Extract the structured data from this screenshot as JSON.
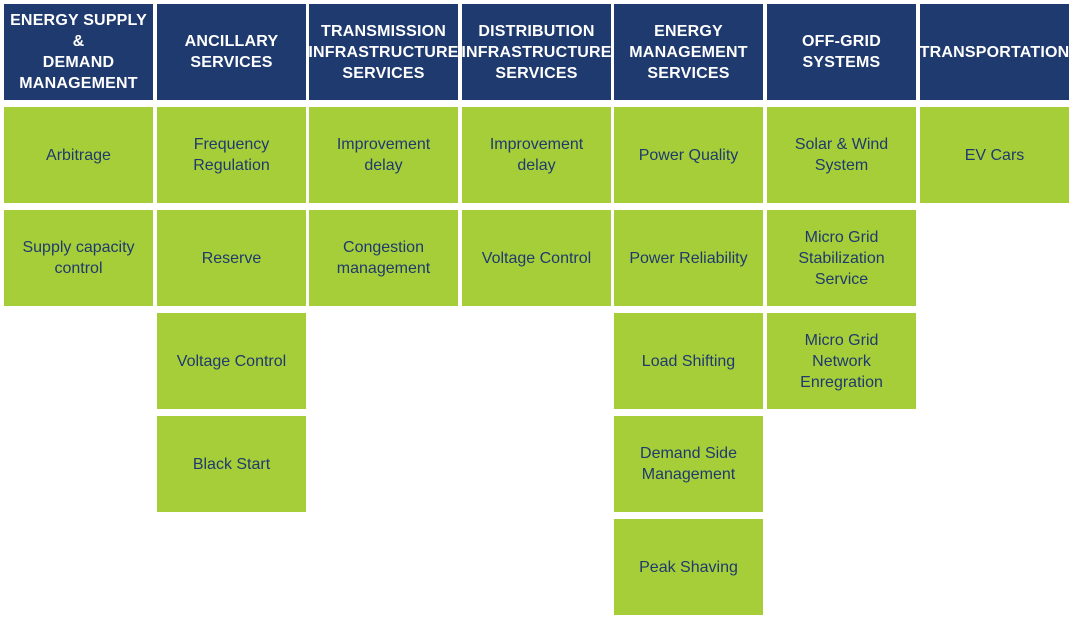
{
  "columns": [
    {
      "header": "ENERGY SUPPLY &\nDEMAND\nMANAGEMENT",
      "items": [
        "Arbitrage",
        "Supply capacity\ncontrol"
      ]
    },
    {
      "header": "ANCILLARY\nSERVICES",
      "items": [
        "Frequency\nRegulation",
        "Reserve",
        "Voltage Control",
        "Black Start"
      ]
    },
    {
      "header": "TRANSMISSION\nINFRASTRUCTURE\nSERVICES",
      "items": [
        "Improvement\ndelay",
        "Congestion\nmanagement"
      ]
    },
    {
      "header": "DISTRIBUTION\nINFRASTRUCTURE\nSERVICES",
      "items": [
        "Improvement\ndelay",
        "Voltage Control"
      ]
    },
    {
      "header": "ENERGY\nMANAGEMENT\nSERVICES",
      "items": [
        "Power Quality",
        "Power Reliability",
        "Load Shifting",
        "Demand Side\nManagement",
        "Peak Shaving"
      ]
    },
    {
      "header": "OFF-GRID\nSYSTEMS",
      "items": [
        "Solar & Wind\nSystem",
        "Micro Grid\nStabilization\nService",
        "Micro Grid\nNetwork\nEnregration"
      ]
    },
    {
      "header": "TRANSPORTATION",
      "items": [
        "EV Cars"
      ]
    }
  ],
  "colors": {
    "header_bg": "#1f3a6e",
    "header_text": "#ffffff",
    "cell_bg": "#a6ce39",
    "cell_text": "#1f3a6e"
  }
}
